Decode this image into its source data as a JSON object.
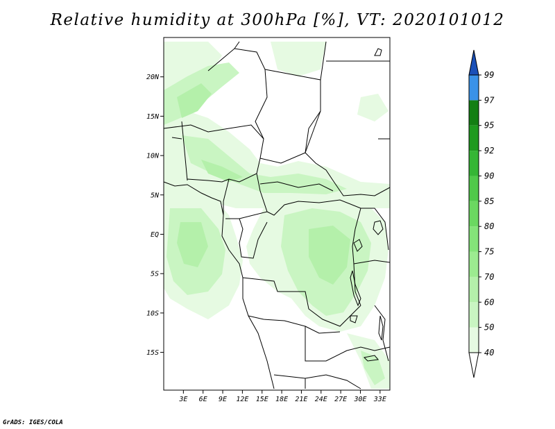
{
  "title": "Relative humidity at 300hPa [%], VT: 2020101012",
  "credit": "GrADS: IGES/COLA",
  "map": {
    "lon_range": [
      0,
      34.5
    ],
    "lat_range": [
      -19.8,
      25
    ],
    "lat_ticks": [
      {
        "value": 20,
        "label": "20N"
      },
      {
        "value": 15,
        "label": "15N"
      },
      {
        "value": 10,
        "label": "10N"
      },
      {
        "value": 5,
        "label": "5N"
      },
      {
        "value": 0,
        "label": "EQ"
      },
      {
        "value": -5,
        "label": "5S"
      },
      {
        "value": -10,
        "label": "10S"
      },
      {
        "value": -15,
        "label": "15S"
      }
    ],
    "lon_ticks": [
      {
        "value": 3,
        "label": "3E"
      },
      {
        "value": 6,
        "label": "6E"
      },
      {
        "value": 9,
        "label": "9E"
      },
      {
        "value": 12,
        "label": "12E"
      },
      {
        "value": 15,
        "label": "15E"
      },
      {
        "value": 18,
        "label": "18E"
      },
      {
        "value": 21,
        "label": "21E"
      },
      {
        "value": 24,
        "label": "24E"
      },
      {
        "value": 27,
        "label": "27E"
      },
      {
        "value": 30,
        "label": "30E"
      },
      {
        "value": 33,
        "label": "33E"
      }
    ]
  },
  "colorbar": {
    "levels": [
      "40",
      "50",
      "60",
      "70",
      "75",
      "80",
      "85",
      "90",
      "92",
      "95",
      "97",
      "99"
    ],
    "colors": [
      "#ffffff",
      "#e6fae2",
      "#c9f5c2",
      "#b4f0aa",
      "#9ceb90",
      "#84e379",
      "#6bd861",
      "#50c94a",
      "#35b635",
      "#1f9a1f",
      "#137f13",
      "#3a92e8",
      "#1e6fd8",
      "#1a50b8"
    ]
  },
  "colors": {
    "land_line": "#000000",
    "rh_40_50": "#e6fae2",
    "rh_50_60": "#c9f5c2",
    "rh_60_70": "#b4f0aa"
  }
}
